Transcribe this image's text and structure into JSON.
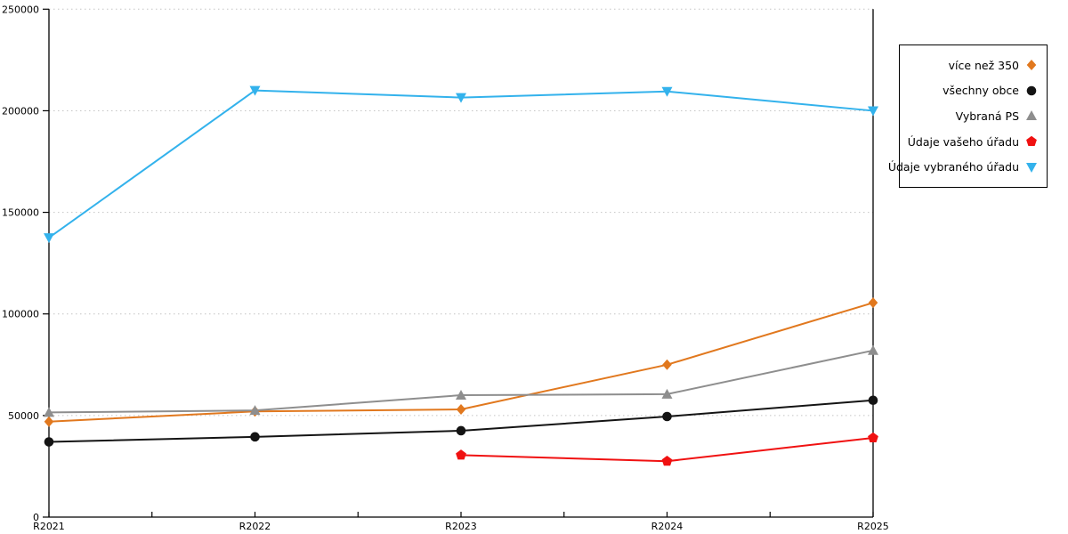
{
  "canvas": {
    "background": "#ffffff",
    "axis_color": "#000000",
    "grid_color": "#c4c4c4"
  },
  "chart_data": {
    "type": "line",
    "title": "",
    "xlabel": "",
    "ylabel": "",
    "categories": [
      "R2021",
      "R2022",
      "R2023",
      "R2024",
      "R2025"
    ],
    "series": [
      {
        "name": "více než 350",
        "marker": "diamond",
        "color": "#e1781e",
        "values": [
          47000,
          52000,
          53000,
          75000,
          105500
        ]
      },
      {
        "name": "všechny obce",
        "marker": "circle",
        "color": "#141414",
        "values": [
          37000,
          39500,
          42500,
          49500,
          57500
        ]
      },
      {
        "name": "Vybraná PS",
        "marker": "triangle-up",
        "color": "#8e8e8e",
        "values": [
          51500,
          52500,
          60000,
          60500,
          82000
        ]
      },
      {
        "name": "Údaje vašeho úřadu",
        "marker": "pentagon",
        "color": "#f01111",
        "values": [
          null,
          null,
          30500,
          27500,
          39000
        ]
      },
      {
        "name": "Údaje vybraného úřadu",
        "marker": "triangle-down",
        "color": "#33b2ec",
        "values": [
          137500,
          210000,
          206500,
          209500,
          200000
        ]
      }
    ],
    "ylim": [
      0,
      250000
    ],
    "yticks": [
      0,
      50000,
      100000,
      150000,
      200000,
      250000
    ],
    "ytick_labels": [
      "0",
      "50000",
      "100000",
      "150000",
      "200000",
      "250000"
    ],
    "grid": "horizontal-dotted",
    "legend_position": "outside-top-right"
  }
}
